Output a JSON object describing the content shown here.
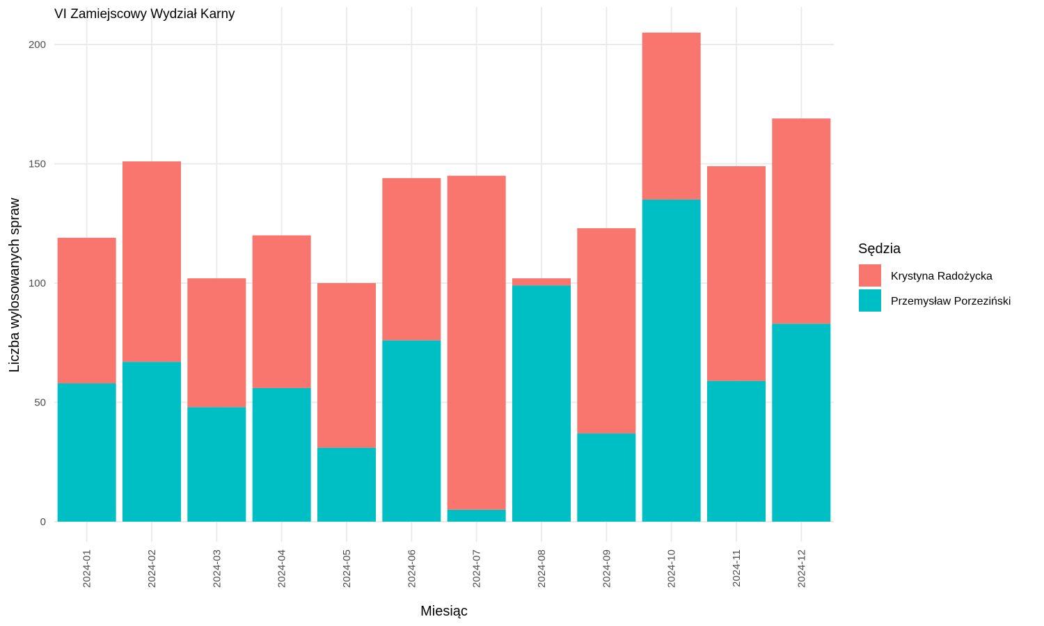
{
  "chart_data": {
    "type": "bar",
    "stacked": true,
    "title": "VI Zamiejscowy Wydział Karny",
    "xlabel": "Miesiąc",
    "ylabel": "Liczba wylosowanych spraw",
    "ylim": [
      0,
      210
    ],
    "yticks": [
      0,
      50,
      100,
      150,
      200
    ],
    "grid": true,
    "legend_title": "Sędzia",
    "legend_position": "right",
    "categories": [
      "2024-01",
      "2024-02",
      "2024-03",
      "2024-04",
      "2024-05",
      "2024-06",
      "2024-07",
      "2024-08",
      "2024-09",
      "2024-10",
      "2024-11",
      "2024-12"
    ],
    "series": [
      {
        "name": "Krystyna Radożycka",
        "color": "#F8766D",
        "values": [
          61,
          84,
          54,
          64,
          69,
          68,
          140,
          3,
          86,
          70,
          90,
          86
        ]
      },
      {
        "name": "Przemysław Porzeziński",
        "color": "#00BFC4",
        "values": [
          58,
          67,
          48,
          56,
          31,
          76,
          5,
          99,
          37,
          135,
          59,
          83
        ]
      }
    ],
    "stack_order_bottom_to_top": [
      "Przemysław Porzeziński",
      "Krystyna Radożycka"
    ]
  }
}
